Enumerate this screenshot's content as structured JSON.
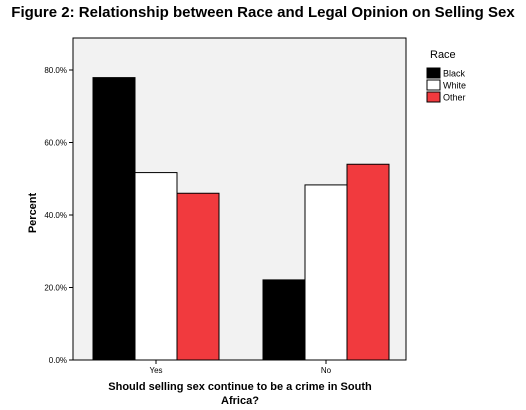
{
  "chart_data": {
    "type": "bar",
    "title": "Figure 2: Relationship between Race and Legal Opinion on Selling Sex",
    "xlabel": "Should selling sex continue to be a crime in South Africa?",
    "ylabel": "Percent",
    "categories": [
      "Yes",
      "No"
    ],
    "series": [
      {
        "name": "Black",
        "color": "#000000",
        "values": [
          77.9,
          22.1
        ]
      },
      {
        "name": "White",
        "color": "#ffffff",
        "values": [
          51.7,
          48.3
        ]
      },
      {
        "name": "Other",
        "color": "#f13a3e",
        "values": [
          46.0,
          54.0
        ]
      }
    ],
    "ylim": [
      0,
      80
    ],
    "yticks": [
      "0.0%",
      "20.0%",
      "40.0%",
      "60.0%",
      "80.0%"
    ],
    "legend": {
      "title": "Race",
      "position": "right"
    },
    "plot_background": "#f2f2f2",
    "grid": false
  }
}
